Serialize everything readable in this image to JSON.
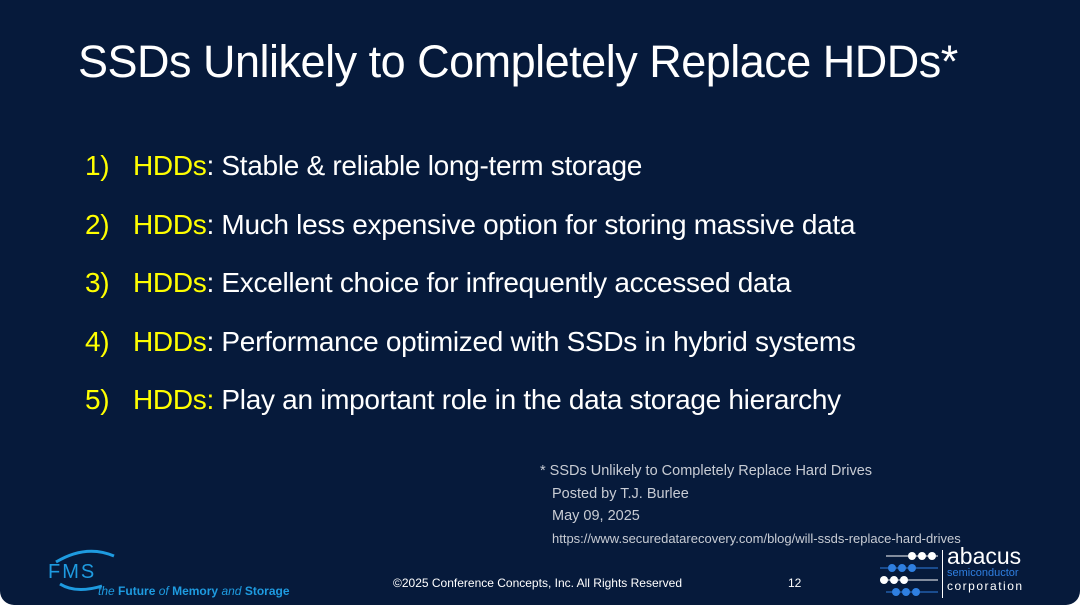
{
  "title": {
    "bold_part": "SSDs",
    "rest": " Unlikely to Completely Replace HDDs*"
  },
  "items": [
    {
      "num": "1)",
      "keyword": "HDDs",
      "colon": ":",
      "text": " Stable & reliable long-term storage"
    },
    {
      "num": "2)",
      "keyword": "HDDs",
      "colon": ":",
      "text": " Much less expensive option for storing massive data"
    },
    {
      "num": "3)",
      "keyword": "HDDs",
      "colon": ":",
      "text": " Excellent choice for infrequently accessed data"
    },
    {
      "num": "4)",
      "keyword": "HDDs",
      "colon": ":",
      "text": " Performance optimized with SSDs in hybrid systems"
    },
    {
      "num": "5)",
      "keyword": "HDDs:",
      "colon": "",
      "text": " Play an important role in the data storage hierarchy"
    }
  ],
  "footnote": {
    "line1": "* SSDs Unlikely to Completely Replace Hard Drives",
    "line2": "Posted by T.J. Burlee",
    "line3": "May 09, 2025",
    "line4": "https://www.securedatarecovery.com/blog/will-ssds-replace-hard-drives"
  },
  "footer": {
    "copyright": "©2025 Conference Concepts, Inc. All Rights Reserved",
    "page": "12"
  },
  "logos": {
    "fms": {
      "mark": "FMS",
      "tagline_the": "the",
      "tagline_future": "Future",
      "tagline_of": "of",
      "tagline_memory": "Memory",
      "tagline_and": "and",
      "tagline_storage": "Storage"
    },
    "abacus": {
      "name": "abacus",
      "line2": "semiconductor",
      "line3": "corporation"
    }
  },
  "colors": {
    "background": "#061a3b",
    "accent": "#ffff00",
    "fms_blue": "#1e9be0",
    "abacus_blue": "#2f7fe0"
  }
}
